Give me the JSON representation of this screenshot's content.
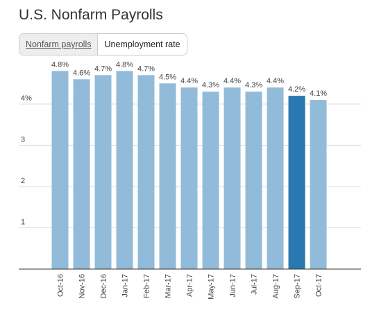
{
  "title": "U.S. Nonfarm Payrolls",
  "tabs": [
    "Nonfarm payrolls",
    "Unemployment rate"
  ],
  "chart_data": {
    "type": "bar",
    "categories": [
      "Oct-16",
      "Nov-16",
      "Dec-16",
      "Jan-17",
      "Feb-17",
      "Mar-17",
      "Apr-17",
      "May-17",
      "Jun-17",
      "Jul-17",
      "Aug-17",
      "Sep-17",
      "Oct-17"
    ],
    "values": [
      4.8,
      4.6,
      4.7,
      4.8,
      4.7,
      4.5,
      4.4,
      4.3,
      4.4,
      4.3,
      4.4,
      4.2,
      4.1
    ],
    "value_labels": [
      "4.8%",
      "4.6%",
      "4.7%",
      "4.8%",
      "4.7%",
      "4.5%",
      "4.4%",
      "4.3%",
      "4.4%",
      "4.3%",
      "4.4%",
      "4.2%",
      "4.1%"
    ],
    "colors": [
      "#92bbda",
      "#92bbda",
      "#92bbda",
      "#92bbda",
      "#92bbda",
      "#92bbda",
      "#92bbda",
      "#92bbda",
      "#92bbda",
      "#92bbda",
      "#92bbda",
      "#2a78b0",
      "#92bbda"
    ],
    "ylim": [
      0,
      5
    ],
    "yticks": [
      1,
      2,
      3,
      {
        "value": 4,
        "label": "4%"
      }
    ],
    "grid": true
  }
}
